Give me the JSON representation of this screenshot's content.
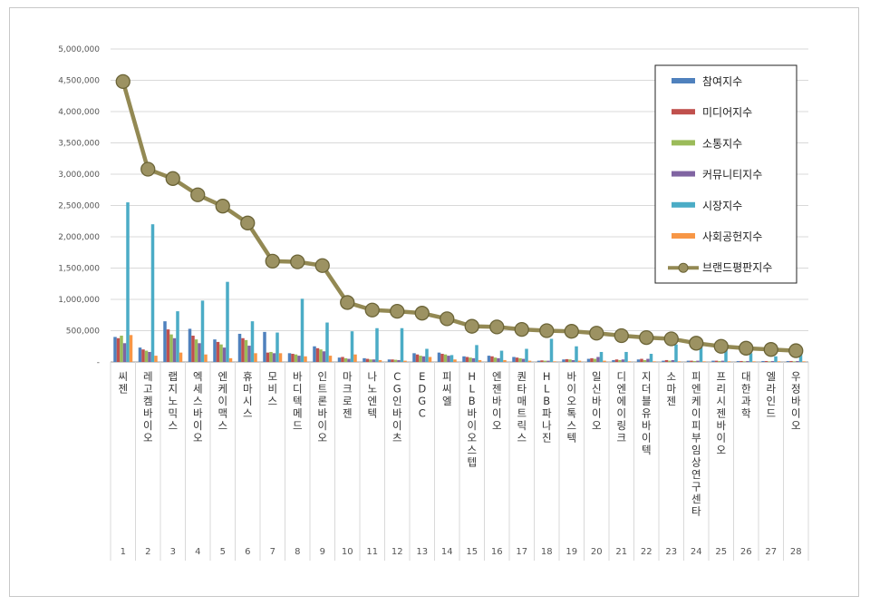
{
  "chart_data": {
    "type": "bar+line",
    "title": "",
    "xlabel": "",
    "ylabel": "",
    "ylim": [
      0,
      5000000
    ],
    "yticks": [
      "-",
      "500,000",
      "1,000,000",
      "1,500,000",
      "2,000,000",
      "2,500,000",
      "3,000,000",
      "3,500,000",
      "4,000,000",
      "4,500,000",
      "5,000,000"
    ],
    "ytick_values": [
      0,
      500000,
      1000000,
      1500000,
      2000000,
      2500000,
      3000000,
      3500000,
      4000000,
      4500000,
      5000000
    ],
    "legend_position": "top-right",
    "categories": [
      "씨젠",
      "레고켐바이오",
      "랩지노믹스",
      "엑세스바이오",
      "엔케이맥스",
      "휴마시스",
      "모비스",
      "바디텍메드",
      "인트론바이오",
      "마크로젠",
      "나노엔텍",
      "CG인바이츠",
      "EDGC",
      "피씨엘",
      "HLB바이오스텝",
      "엔젠바이오",
      "퀀타매트릭스",
      "HLB파나진",
      "바이오톡스텍",
      "일신바이오",
      "디엔에이링크",
      "지더블유바이텍",
      "소마젠",
      "피엔케이피부임상연구센타",
      "프리시젠바이오",
      "대한과학",
      "엘라인드",
      "우정바이오"
    ],
    "index_labels": [
      "1",
      "2",
      "3",
      "4",
      "5",
      "6",
      "7",
      "8",
      "9",
      "10",
      "11",
      "12",
      "13",
      "14",
      "15",
      "16",
      "17",
      "18",
      "19",
      "20",
      "21",
      "22",
      "23",
      "24",
      "25",
      "26",
      "27",
      "28"
    ],
    "series": [
      {
        "name": "참여지수",
        "kind": "bar",
        "color": "#4f81bd",
        "values": [
          400000,
          230000,
          650000,
          530000,
          360000,
          450000,
          480000,
          140000,
          250000,
          70000,
          60000,
          40000,
          140000,
          150000,
          90000,
          100000,
          80000,
          20000,
          40000,
          50000,
          30000,
          40000,
          20000,
          20000,
          20000,
          15000,
          15000,
          15000
        ]
      },
      {
        "name": "미디어지수",
        "kind": "bar",
        "color": "#c0504d",
        "values": [
          380000,
          200000,
          520000,
          420000,
          320000,
          380000,
          150000,
          130000,
          220000,
          80000,
          50000,
          40000,
          120000,
          130000,
          80000,
          90000,
          70000,
          25000,
          45000,
          60000,
          40000,
          50000,
          30000,
          20000,
          20000,
          15000,
          15000,
          15000
        ]
      },
      {
        "name": "소통지수",
        "kind": "bar",
        "color": "#9bbb59",
        "values": [
          420000,
          180000,
          440000,
          360000,
          280000,
          350000,
          160000,
          120000,
          200000,
          60000,
          40000,
          35000,
          100000,
          120000,
          70000,
          70000,
          60000,
          20000,
          40000,
          50000,
          30000,
          30000,
          20000,
          15000,
          15000,
          10000,
          10000,
          10000
        ]
      },
      {
        "name": "커뮤니티지수",
        "kind": "bar",
        "color": "#8064a2",
        "values": [
          300000,
          160000,
          380000,
          300000,
          230000,
          260000,
          140000,
          100000,
          170000,
          50000,
          40000,
          30000,
          90000,
          100000,
          60000,
          60000,
          50000,
          20000,
          30000,
          80000,
          40000,
          50000,
          30000,
          20000,
          20000,
          15000,
          15000,
          15000
        ]
      },
      {
        "name": "시장지수",
        "kind": "bar",
        "color": "#4bacc6",
        "values": [
          2550000,
          2200000,
          810000,
          980000,
          1280000,
          650000,
          470000,
          1010000,
          630000,
          490000,
          540000,
          540000,
          210000,
          110000,
          270000,
          180000,
          210000,
          370000,
          250000,
          160000,
          160000,
          130000,
          280000,
          250000,
          200000,
          140000,
          90000,
          130000
        ]
      },
      {
        "name": "사회공헌지수",
        "kind": "bar",
        "color": "#f79646",
        "values": [
          430000,
          100000,
          150000,
          120000,
          60000,
          140000,
          140000,
          90000,
          100000,
          120000,
          30000,
          20000,
          80000,
          40000,
          30000,
          30000,
          20000,
          10000,
          20000,
          20000,
          10000,
          10000,
          10000,
          10000,
          10000,
          10000,
          10000,
          10000
        ]
      },
      {
        "name": "브랜드평판지수",
        "kind": "line",
        "color": "#938953",
        "values": [
          4480000,
          3080000,
          2930000,
          2670000,
          2490000,
          2220000,
          1610000,
          1600000,
          1540000,
          950000,
          830000,
          810000,
          780000,
          690000,
          570000,
          560000,
          520000,
          500000,
          490000,
          460000,
          420000,
          390000,
          370000,
          300000,
          250000,
          220000,
          200000,
          180000
        ]
      }
    ]
  }
}
